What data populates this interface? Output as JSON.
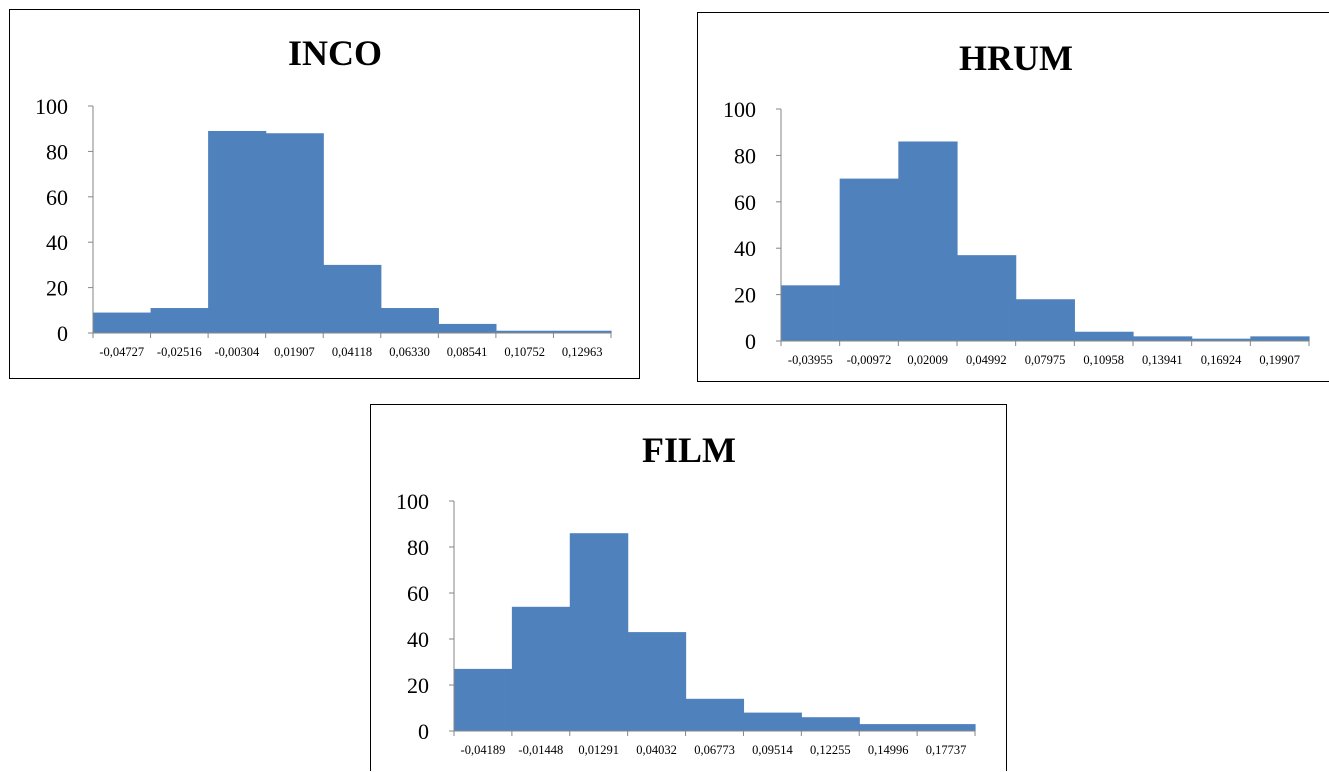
{
  "chart_data": [
    {
      "type": "bar",
      "title": "INCO",
      "xlabel": "",
      "ylabel": "",
      "ylim": [
        0,
        100
      ],
      "yticks": [
        "0",
        "20",
        "40",
        "60",
        "80",
        "100"
      ],
      "categories": [
        "-0,04727",
        "-0,02516",
        "-0,00304",
        "0,01907",
        "0,04118",
        "0,06330",
        "0,08541",
        "0,10752",
        "0,12963"
      ],
      "values": [
        9,
        11,
        89,
        88,
        30,
        11,
        4,
        1,
        1
      ],
      "bar_color": "#4f81bd",
      "grid": false,
      "legend": "none"
    },
    {
      "type": "bar",
      "title": "HRUM",
      "xlabel": "",
      "ylabel": "",
      "ylim": [
        0,
        100
      ],
      "yticks": [
        "0",
        "20",
        "40",
        "60",
        "80",
        "100"
      ],
      "categories": [
        "-0,03955",
        "-0,00972",
        "0,02009",
        "0,04992",
        "0,07975",
        "0,10958",
        "0,13941",
        "0,16924",
        "0,19907"
      ],
      "values": [
        24,
        70,
        86,
        37,
        18,
        4,
        2,
        1,
        2
      ],
      "bar_color": "#4f81bd",
      "grid": false,
      "legend": "none"
    },
    {
      "type": "bar",
      "title": "FILM",
      "xlabel": "",
      "ylabel": "",
      "ylim": [
        0,
        100
      ],
      "yticks": [
        "0",
        "20",
        "40",
        "60",
        "80",
        "100"
      ],
      "categories": [
        "-0,04189",
        "-0,01448",
        "0,01291",
        "0,04032",
        "0,06773",
        "0,09514",
        "0,12255",
        "0,14996",
        "0,17737"
      ],
      "values": [
        27,
        54,
        86,
        43,
        14,
        8,
        6,
        3,
        3
      ],
      "bar_color": "#4f81bd",
      "grid": false,
      "legend": "none"
    }
  ]
}
